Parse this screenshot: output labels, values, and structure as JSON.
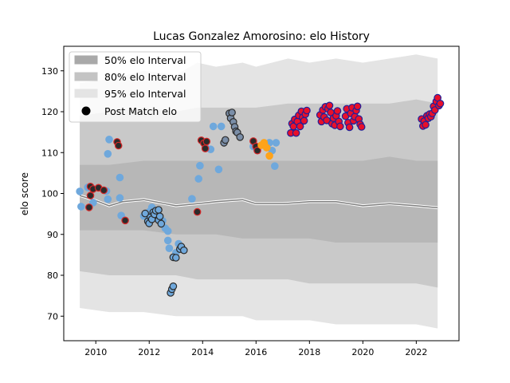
{
  "chart_data": {
    "type": "scatter",
    "title": "Lucas Gonzalez Amorosino: elo History",
    "xlabel": "",
    "ylabel": "elo score",
    "xlim": [
      2008.8,
      2023.6
    ],
    "ylim": [
      64,
      136
    ],
    "x_ticks": [
      2010,
      2012,
      2014,
      2016,
      2018,
      2020,
      2022
    ],
    "y_ticks": [
      70,
      80,
      90,
      100,
      110,
      120,
      130
    ],
    "grid": false,
    "legend_position": "top-left",
    "legend": [
      {
        "label": "50% elo Interval",
        "kind": "band",
        "color": "#a9a9a9"
      },
      {
        "label": "80% elo Interval",
        "kind": "band",
        "color": "#c4c4c4"
      },
      {
        "label": "95% elo Interval",
        "kind": "band",
        "color": "#e4e4e4"
      },
      {
        "label": "Post Match elo",
        "kind": "marker",
        "color": "#000000"
      }
    ],
    "colors": {
      "band95": "#e4e4e4",
      "band80": "#c9c9c9",
      "band50": "#b7b7b7",
      "mean_line": "#7f7f7f",
      "mean_highlight": "#ffffff",
      "light_blue": "#6fa8dc",
      "dark_point": "#2b2b2b",
      "red_edge": "#d62728",
      "steel": "#7a8ea8",
      "orange": "#ffa31a",
      "crimson": "#e8102a",
      "navy_edge": "#20209a"
    },
    "band_x": [
      2009.4,
      2010.5,
      2011.8,
      2013.0,
      2013.8,
      2014.5,
      2015.5,
      2016.0,
      2017.2,
      2018.0,
      2019.0,
      2020.0,
      2021.0,
      2022.0,
      2022.8
    ],
    "band95_upper": [
      127,
      128,
      130,
      129,
      132,
      131,
      132,
      131,
      133,
      132,
      133,
      132,
      133,
      134,
      133
    ],
    "band95_lower": [
      72,
      71,
      71,
      70,
      70,
      70,
      70,
      69,
      69,
      69,
      68,
      68,
      68,
      68,
      67
    ],
    "band80_upper": [
      119,
      120,
      121,
      120,
      121,
      121,
      121,
      121,
      122,
      122,
      122,
      122,
      122,
      123,
      122
    ],
    "band80_lower": [
      81,
      80,
      80,
      80,
      79,
      79,
      79,
      79,
      79,
      78,
      78,
      78,
      78,
      78,
      77
    ],
    "band50_upper": [
      107,
      107,
      108,
      108,
      108,
      108,
      108,
      108,
      108,
      108,
      108,
      108,
      109,
      108,
      108
    ],
    "band50_lower": [
      91,
      91,
      91,
      90,
      90,
      90,
      89,
      89,
      89,
      89,
      88,
      88,
      88,
      88,
      88
    ],
    "mean_x": [
      2009.4,
      2009.9,
      2010.5,
      2011.0,
      2011.8,
      2012.6,
      2013.0,
      2013.8,
      2014.5,
      2015.5,
      2016.0,
      2017.0,
      2018.0,
      2019.0,
      2020.0,
      2021.0,
      2022.0,
      2022.8
    ],
    "mean_y": [
      99.5,
      98.5,
      97.0,
      98.0,
      98.5,
      97.5,
      97.0,
      97.5,
      98.0,
      98.5,
      97.5,
      97.5,
      98.0,
      98.0,
      97.0,
      97.5,
      97.0,
      96.5
    ],
    "point_groups": [
      {
        "name": "light",
        "color": "light_blue",
        "edge": "light_blue",
        "points": [
          [
            2009.4,
            100.5
          ],
          [
            2009.45,
            96.8
          ],
          [
            2009.7,
            101.5
          ],
          [
            2009.9,
            97.8
          ],
          [
            2010.4,
            100.6
          ],
          [
            2010.45,
            98.6
          ],
          [
            2010.45,
            109.7
          ],
          [
            2010.5,
            113.2
          ],
          [
            2010.9,
            98.9
          ],
          [
            2010.9,
            103.9
          ],
          [
            2010.95,
            94.6
          ],
          [
            2011.8,
            94.5
          ],
          [
            2012.0,
            95.5
          ],
          [
            2012.1,
            96.6
          ],
          [
            2012.5,
            93.3
          ],
          [
            2012.6,
            91.5
          ],
          [
            2012.7,
            88.5
          ],
          [
            2012.75,
            86.6
          ],
          [
            2012.7,
            90.8
          ],
          [
            2013.0,
            85.5
          ],
          [
            2013.1,
            87.7
          ],
          [
            2013.6,
            98.7
          ],
          [
            2013.85,
            103.6
          ],
          [
            2013.9,
            106.8
          ],
          [
            2014.1,
            111.5
          ],
          [
            2014.3,
            110.8
          ],
          [
            2014.4,
            116.4
          ],
          [
            2014.6,
            105.9
          ],
          [
            2014.7,
            116.4
          ],
          [
            2015.9,
            111.5
          ],
          [
            2016.5,
            112.4
          ],
          [
            2016.6,
            110.5
          ],
          [
            2016.7,
            106.7
          ],
          [
            2016.75,
            112.4
          ]
        ]
      },
      {
        "name": "dark-red-edge",
        "color": "dark_point",
        "edge": "red_edge",
        "points": [
          [
            2009.75,
            96.6
          ],
          [
            2009.8,
            99.5
          ],
          [
            2009.8,
            101.7
          ],
          [
            2009.9,
            101.1
          ],
          [
            2010.1,
            101.4
          ],
          [
            2010.3,
            100.8
          ],
          [
            2010.8,
            112.6
          ],
          [
            2010.85,
            111.7
          ],
          [
            2011.1,
            93.4
          ],
          [
            2013.8,
            95.5
          ],
          [
            2013.95,
            113.0
          ],
          [
            2014.05,
            112.3
          ],
          [
            2014.1,
            111.0
          ],
          [
            2014.15,
            112.7
          ],
          [
            2015.9,
            112.8
          ],
          [
            2016.0,
            111.5
          ],
          [
            2016.05,
            110.5
          ]
        ]
      },
      {
        "name": "blue-dark-edge",
        "color": "light_blue",
        "edge": "dark_point",
        "points": [
          [
            2011.85,
            95.1
          ],
          [
            2011.95,
            93.2
          ],
          [
            2012.0,
            92.7
          ],
          [
            2012.05,
            94.2
          ],
          [
            2012.1,
            93.7
          ],
          [
            2012.15,
            95.4
          ],
          [
            2012.2,
            94.9
          ],
          [
            2012.25,
            95.8
          ],
          [
            2012.35,
            96.0
          ],
          [
            2012.35,
            93.5
          ],
          [
            2012.4,
            94.4
          ],
          [
            2012.45,
            92.6
          ],
          [
            2012.8,
            75.7
          ],
          [
            2012.85,
            76.6
          ],
          [
            2012.9,
            77.3
          ],
          [
            2012.9,
            84.4
          ],
          [
            2013.0,
            84.3
          ],
          [
            2013.15,
            86.4
          ],
          [
            2013.2,
            87.0
          ],
          [
            2013.3,
            86.1
          ]
        ]
      },
      {
        "name": "steel",
        "color": "steel",
        "edge": "dark_point",
        "points": [
          [
            2014.8,
            112.4
          ],
          [
            2014.85,
            113.1
          ],
          [
            2015.0,
            119.6
          ],
          [
            2015.05,
            118.4
          ],
          [
            2015.1,
            119.8
          ],
          [
            2015.15,
            117.5
          ],
          [
            2015.2,
            116.3
          ],
          [
            2015.25,
            115.2
          ],
          [
            2015.3,
            114.9
          ],
          [
            2015.4,
            113.8
          ]
        ]
      },
      {
        "name": "orange",
        "color": "orange",
        "edge": "orange",
        "points": [
          [
            2016.2,
            111.8
          ],
          [
            2016.3,
            112.4
          ],
          [
            2016.4,
            111.2
          ],
          [
            2016.5,
            109.2
          ]
        ]
      },
      {
        "name": "crimson",
        "color": "crimson",
        "edge": "navy_edge",
        "points": [
          [
            2017.3,
            114.8
          ],
          [
            2017.35,
            117.1
          ],
          [
            2017.4,
            116.4
          ],
          [
            2017.45,
            118.1
          ],
          [
            2017.5,
            114.8
          ],
          [
            2017.55,
            117.6
          ],
          [
            2017.6,
            119.1
          ],
          [
            2017.65,
            116.4
          ],
          [
            2017.7,
            120.1
          ],
          [
            2017.75,
            118.6
          ],
          [
            2017.8,
            117.8
          ],
          [
            2017.85,
            119.4
          ],
          [
            2017.9,
            120.3
          ],
          [
            2018.4,
            119.2
          ],
          [
            2018.45,
            117.6
          ],
          [
            2018.5,
            120.4
          ],
          [
            2018.55,
            118.7
          ],
          [
            2018.6,
            121.2
          ],
          [
            2018.65,
            117.9
          ],
          [
            2018.7,
            120.7
          ],
          [
            2018.75,
            121.5
          ],
          [
            2018.8,
            119.8
          ],
          [
            2018.85,
            117.1
          ],
          [
            2018.9,
            118.4
          ],
          [
            2018.95,
            116.7
          ],
          [
            2019.0,
            119.0
          ],
          [
            2019.05,
            120.2
          ],
          [
            2019.1,
            117.6
          ],
          [
            2019.15,
            116.4
          ],
          [
            2019.35,
            118.9
          ],
          [
            2019.4,
            120.7
          ],
          [
            2019.45,
            117.3
          ],
          [
            2019.5,
            116.2
          ],
          [
            2019.55,
            119.6
          ],
          [
            2019.6,
            121.0
          ],
          [
            2019.65,
            117.8
          ],
          [
            2019.7,
            118.8
          ],
          [
            2019.75,
            120.3
          ],
          [
            2019.8,
            121.3
          ],
          [
            2019.85,
            118.2
          ],
          [
            2019.9,
            116.9
          ],
          [
            2019.95,
            116.3
          ],
          [
            2022.2,
            118.2
          ],
          [
            2022.25,
            116.5
          ],
          [
            2022.3,
            117.7
          ],
          [
            2022.35,
            116.8
          ],
          [
            2022.4,
            119.0
          ],
          [
            2022.45,
            118.4
          ],
          [
            2022.5,
            119.4
          ],
          [
            2022.55,
            118.8
          ],
          [
            2022.6,
            119.6
          ],
          [
            2022.65,
            121.3
          ],
          [
            2022.7,
            120.4
          ],
          [
            2022.75,
            122.5
          ],
          [
            2022.8,
            123.4
          ],
          [
            2022.85,
            121.5
          ],
          [
            2022.9,
            122.0
          ]
        ]
      }
    ]
  }
}
